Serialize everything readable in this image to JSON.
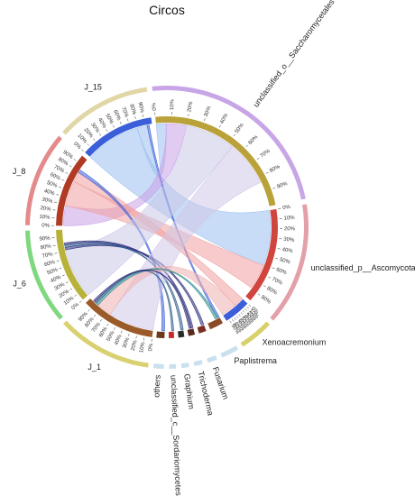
{
  "chart_data": {
    "type": "chord",
    "title": "Circos",
    "tick_labels": [
      "0%",
      "10%",
      "20%",
      "30%",
      "40%",
      "50%",
      "60%",
      "70%",
      "80%",
      "90%"
    ],
    "sectors": [
      {
        "name": "unclassified_o__Saccharomycetales",
        "group": "taxon",
        "value": 30,
        "color": "#b9a23a",
        "band": "#c8a6e6"
      },
      {
        "name": "unclassified_p__Ascomycota",
        "group": "taxon",
        "value": 18,
        "color": "#d0453f",
        "band": "#e4a0a8"
      },
      {
        "name": "Xenoacremonium",
        "group": "taxon",
        "value": 5,
        "color": "#3a5fd9",
        "band": "#d8d06a"
      },
      {
        "name": "Paplistrema",
        "group": "taxon",
        "value": 2.6,
        "color": "#8a4a2a",
        "band": "#c9e0ee"
      },
      {
        "name": "Fusarium",
        "group": "taxon",
        "value": 1.4,
        "color": "#7a3020",
        "band": "#c9e0ee"
      },
      {
        "name": "Trichoderma",
        "group": "taxon",
        "value": 1.2,
        "color": "#5a2a20",
        "band": "#c9e0ee"
      },
      {
        "name": "Graphium",
        "group": "taxon",
        "value": 1.1,
        "color": "#2a2a2a",
        "band": "#c9e0ee"
      },
      {
        "name": "unclassified_c__Sordariomycetes",
        "group": "taxon",
        "value": 1.0,
        "color": "#c62a2a",
        "band": "#c9e0ee"
      },
      {
        "name": "others",
        "group": "taxon",
        "value": 1.5,
        "color": "#6a3a1a",
        "band": "#c9e0ee"
      },
      {
        "name": "J_1",
        "group": "sample",
        "value": 14,
        "color": "#9b5a2a",
        "band": "#d9d070"
      },
      {
        "name": "J_6",
        "group": "sample",
        "value": 14,
        "color": "#b8b23a",
        "band": "#7fd87f"
      },
      {
        "name": "J_8",
        "group": "sample",
        "value": 14,
        "color": "#b03a24",
        "band": "#e48a8a"
      },
      {
        "name": "J_15",
        "group": "sample",
        "value": 14,
        "color": "#3a5fd9",
        "band": "#e0d6a6"
      }
    ],
    "links": [
      {
        "from": "J_15",
        "to": "unclassified_p__Ascomycota",
        "value": 11,
        "color": "#9cc0f0"
      },
      {
        "from": "J_15",
        "to": "unclassified_o__Saccharomycetales",
        "value": 2,
        "color": "#9cc0f0"
      },
      {
        "from": "J_15",
        "to": "Paplistrema",
        "value": 0.4,
        "color": "#3a5fd9"
      },
      {
        "from": "J_8",
        "to": "unclassified_o__Saccharomycetales",
        "value": 4,
        "color": "#c9a0e6"
      },
      {
        "from": "J_8",
        "to": "unclassified_p__Ascomycota",
        "value": 5,
        "color": "#f0a0a0"
      },
      {
        "from": "J_8",
        "to": "Xenoacremonium",
        "value": 2,
        "color": "#f0a0a0"
      },
      {
        "from": "J_8",
        "to": "others",
        "value": 0.6,
        "color": "#3a5fd9"
      },
      {
        "from": "J_6",
        "to": "unclassified_o__Saccharomycetales",
        "value": 10,
        "color": "#c8c8e8"
      },
      {
        "from": "J_6",
        "to": "Fusarium",
        "value": 0.5,
        "color": "#2a2a7a"
      },
      {
        "from": "J_6",
        "to": "Graphium",
        "value": 0.5,
        "color": "#2a5a8a"
      },
      {
        "from": "J_6",
        "to": "Trichoderma",
        "value": 0.4,
        "color": "#2a2a7a"
      },
      {
        "from": "J_1",
        "to": "unclassified_o__Saccharomycetales",
        "value": 9,
        "color": "#d0c8e8"
      },
      {
        "from": "J_1",
        "to": "Xenoacremonium",
        "value": 3,
        "color": "#f0b0b0"
      },
      {
        "from": "J_1",
        "to": "Paplistrema",
        "value": 0.5,
        "color": "#2a8a8a"
      },
      {
        "from": "J_1",
        "to": "unclassified_c__Sordariomycetes",
        "value": 0.4,
        "color": "#2a5a8a"
      },
      {
        "from": "J_1",
        "to": "Trichoderma",
        "value": 0.4,
        "color": "#2a2a7a"
      }
    ]
  }
}
